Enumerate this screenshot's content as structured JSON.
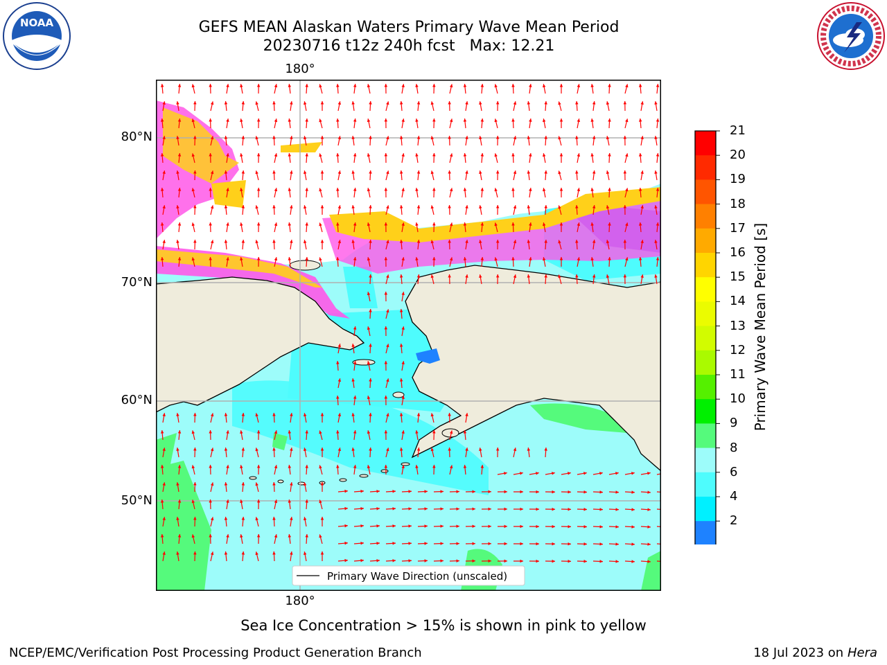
{
  "header": {
    "title_line1": "GEFS MEAN Alaskan Waters Primary Wave Mean Period",
    "title_line2": "20230716 t12z 240h fcst   Max: 12.21"
  },
  "logos": {
    "left": {
      "text": "NOAA",
      "ring_text": "NATIONAL OCEANIC AND ATMOSPHERIC ADMINISTRATION · U.S. DEPARTMENT OF COMMERCE"
    },
    "right": {
      "ring_text": "NATIONAL WEATHER SERVICE"
    }
  },
  "map": {
    "lon_label_top": "180°",
    "lon_label_bottom": "180°",
    "lat_labels": [
      "80°N",
      "70°N",
      "60°N",
      "50°N"
    ],
    "legend_text": "Primary Wave Direction (unscaled)",
    "colors": {
      "land": "#efecdc",
      "ocean": "#9dfcfa",
      "ocean_mid": "#4efcfd",
      "ice_pink": "#ff58e8",
      "ice_yellow": "#ffd01a",
      "arrow": "#ff0000",
      "grid": "#b0b0b0"
    }
  },
  "colorbar": {
    "label": "Primary Wave Mean Period [s]",
    "ticks": [
      "21",
      "20",
      "19",
      "18",
      "17",
      "16",
      "15",
      "14",
      "13",
      "12",
      "11",
      "10",
      "9",
      "8",
      "6",
      "4",
      "2"
    ],
    "colors": [
      "#ff0000",
      "#ff2a00",
      "#ff5500",
      "#ff8000",
      "#ffaa00",
      "#ffd500",
      "#ffff00",
      "#ebfc00",
      "#d2fc00",
      "#aafa00",
      "#55f000",
      "#00f000",
      "#55fa7c",
      "#9dfcfa",
      "#4efcfd",
      "#00f0ff",
      "#1e82ff"
    ],
    "extend_color": "#0000ff"
  },
  "notes": {
    "sea_ice": "Sea Ice Concentration > 15% is shown in pink to yellow"
  },
  "footer": {
    "left": "NCEP/EMC/Verification Post Processing Product Generation Branch",
    "right_prefix": "18 Jul 2023 on ",
    "right_machine": "Hera"
  }
}
